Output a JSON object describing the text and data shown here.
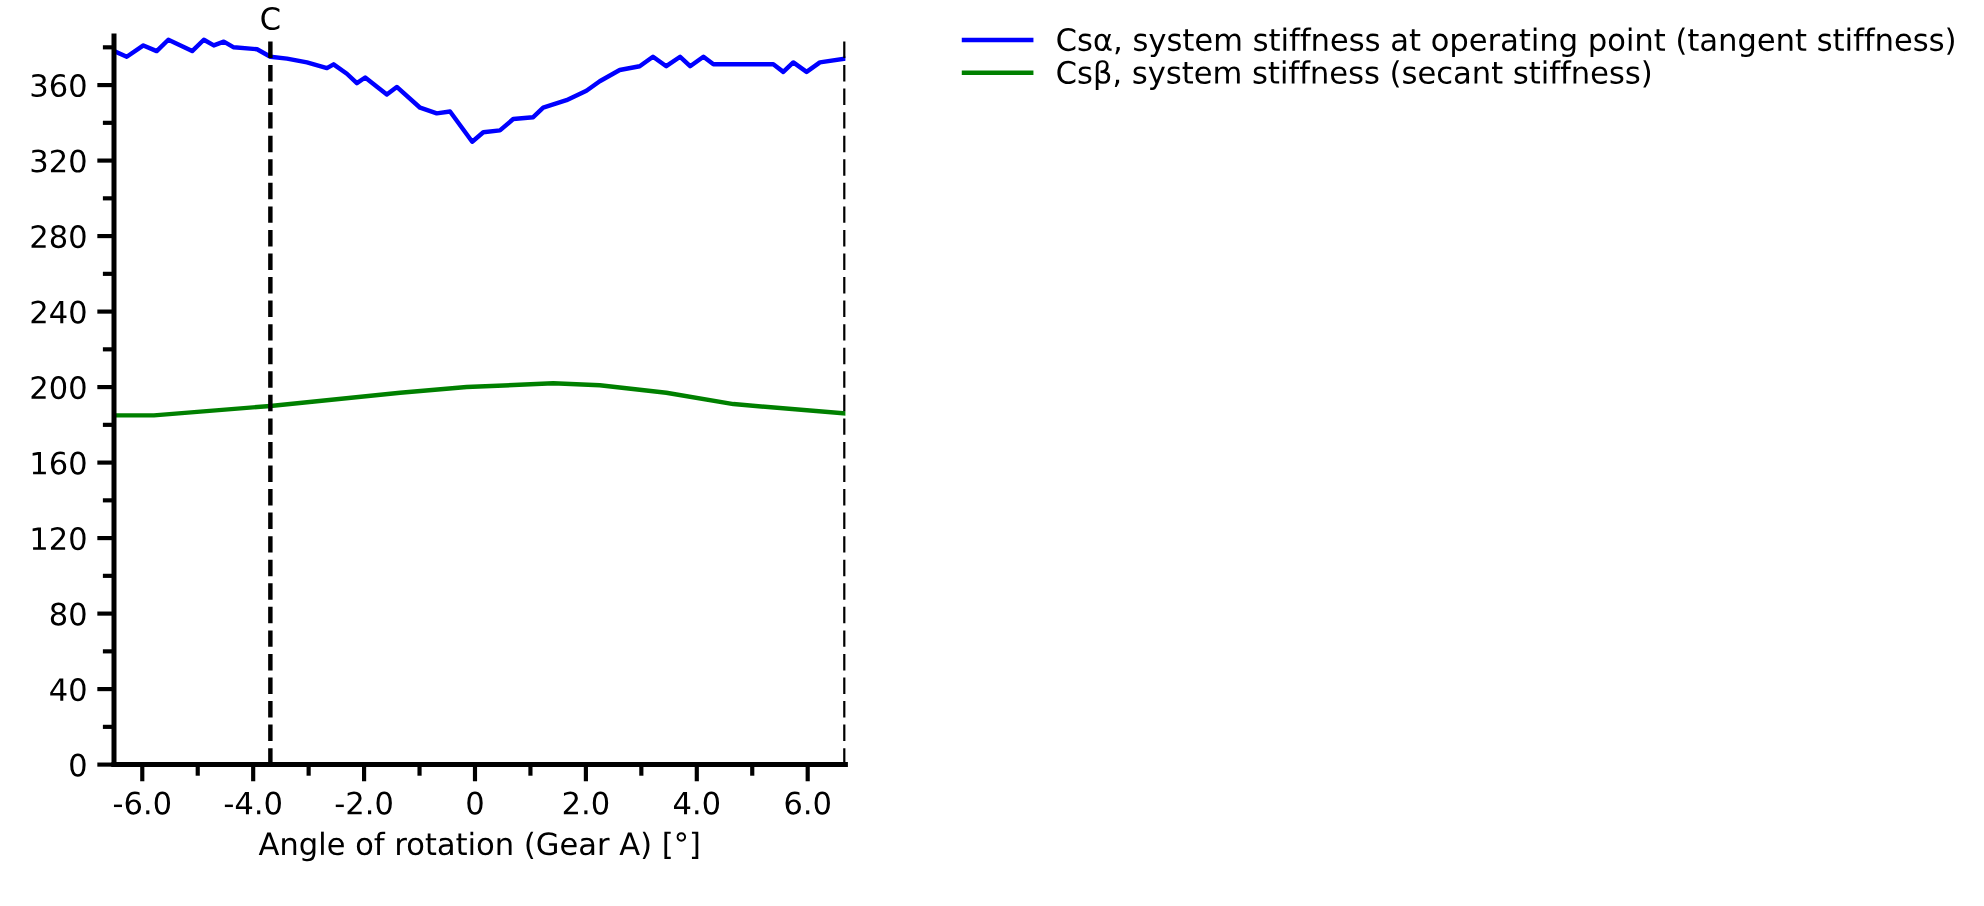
{
  "chart_data": {
    "type": "line",
    "xlabel": "Angle of rotation (Gear A) [°]",
    "xlim": [
      -6.51,
      6.68
    ],
    "ylim": [
      0,
      386
    ],
    "xticks": [
      {
        "value": -6,
        "label": "-6.0"
      },
      {
        "value": -4,
        "label": "-4.0"
      },
      {
        "value": -2,
        "label": "-2.0"
      },
      0,
      {
        "value": 2,
        "label": "2.0"
      },
      {
        "value": 4,
        "label": "4.0"
      },
      {
        "value": 6,
        "label": "6.0"
      }
    ],
    "yticks": [
      0,
      40,
      80,
      120,
      160,
      200,
      240,
      280,
      320,
      360
    ],
    "grid": false,
    "legend": "top right",
    "marker": "none",
    "ref_lines": [
      {
        "axis": "x",
        "value": -3.69,
        "label": "C",
        "color": "#000000",
        "line_style": "dashed"
      },
      {
        "axis": "x",
        "value": 6.68,
        "label": null,
        "color": "#000000",
        "line_style": "dashed"
      }
    ],
    "series": [
      {
        "name": "Csα, system stiffness at operating point (tangent stiffness)",
        "color": "#0000ff",
        "line_style": "solid",
        "x": [
          -6.51,
          -6.28,
          -5.98,
          -5.74,
          -5.53,
          -5.31,
          -5.1,
          -4.89,
          -4.71,
          -4.53,
          -4.35,
          -3.93,
          -3.69,
          -3.39,
          -3.03,
          -2.67,
          -2.55,
          -2.31,
          -2.13,
          -1.98,
          -1.59,
          -1.41,
          -0.99,
          -0.69,
          -0.45,
          -0.05,
          0.15,
          0.45,
          0.69,
          1.05,
          1.23,
          1.65,
          2.01,
          2.25,
          2.61,
          2.97,
          3.21,
          3.45,
          3.7,
          3.88,
          4.12,
          4.3,
          5.38,
          5.56,
          5.74,
          5.98,
          6.22,
          6.68
        ],
        "values": [
          378,
          375,
          381,
          378,
          384,
          381,
          378,
          384,
          381,
          383,
          380,
          379,
          375,
          374,
          372,
          369,
          371,
          366,
          361,
          364,
          355,
          359,
          348,
          345,
          346,
          330,
          335,
          336,
          342,
          343,
          348,
          352,
          357,
          362,
          368,
          370,
          375,
          370,
          375,
          370,
          375,
          371,
          371,
          367,
          372,
          367,
          372,
          374
        ]
      },
      {
        "name": "Csβ, system stiffness (secant stiffness)",
        "color": "#008000",
        "line_style": "solid",
        "x": [
          -6.51,
          -5.79,
          -3.69,
          -1.35,
          -0.15,
          1.41,
          2.25,
          3.45,
          4.66,
          6.68
        ],
        "values": [
          185,
          185,
          190,
          197,
          200,
          202,
          201,
          197,
          191,
          186
        ]
      }
    ]
  }
}
